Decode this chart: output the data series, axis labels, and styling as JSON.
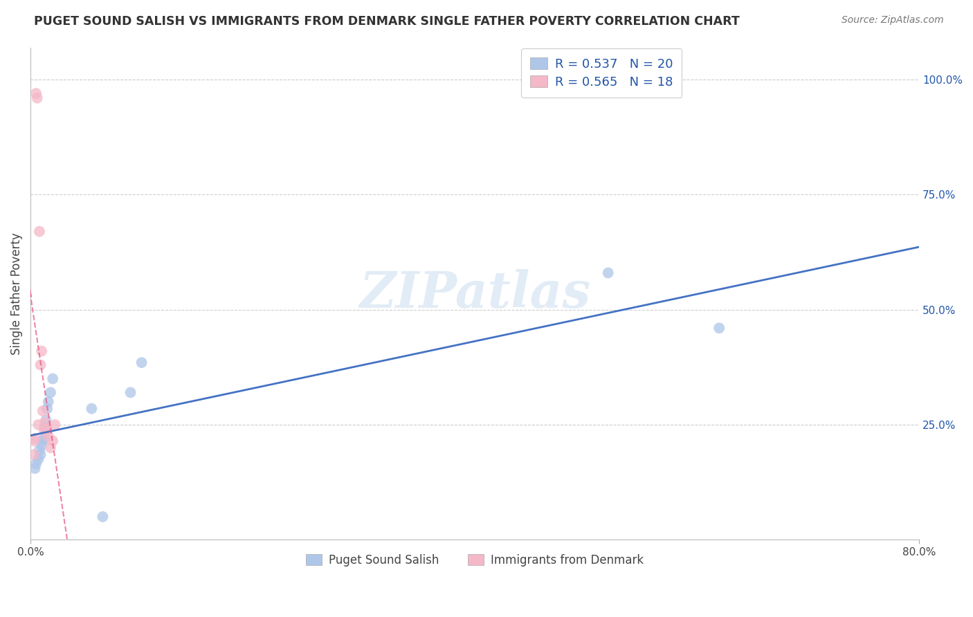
{
  "title": "PUGET SOUND SALISH VS IMMIGRANTS FROM DENMARK SINGLE FATHER POVERTY CORRELATION CHART",
  "source": "Source: ZipAtlas.com",
  "ylabel": "Single Father Poverty",
  "y_ticks": [
    "25.0%",
    "50.0%",
    "75.0%",
    "100.0%"
  ],
  "y_tick_vals": [
    0.25,
    0.5,
    0.75,
    1.0
  ],
  "x_range": [
    0.0,
    0.8
  ],
  "y_range": [
    0.0,
    1.07
  ],
  "watermark": "ZIPatlas",
  "blue_series_label": "Puget Sound Salish",
  "pink_series_label": "Immigrants from Denmark",
  "blue_R": "0.537",
  "blue_N": "20",
  "pink_R": "0.565",
  "pink_N": "18",
  "blue_x": [
    0.004,
    0.005,
    0.007,
    0.008,
    0.009,
    0.01,
    0.011,
    0.012,
    0.013,
    0.014,
    0.015,
    0.016,
    0.018,
    0.02,
    0.055,
    0.09,
    0.1,
    0.065,
    0.52,
    0.62
  ],
  "blue_y": [
    0.155,
    0.165,
    0.175,
    0.195,
    0.185,
    0.205,
    0.215,
    0.22,
    0.245,
    0.26,
    0.285,
    0.3,
    0.32,
    0.35,
    0.285,
    0.32,
    0.385,
    0.05,
    0.58,
    0.46
  ],
  "pink_x": [
    0.003,
    0.004,
    0.005,
    0.006,
    0.007,
    0.008,
    0.009,
    0.01,
    0.011,
    0.012,
    0.013,
    0.014,
    0.015,
    0.016,
    0.018,
    0.02,
    0.022,
    0.003
  ],
  "pink_y": [
    0.215,
    0.22,
    0.97,
    0.96,
    0.25,
    0.67,
    0.38,
    0.41,
    0.28,
    0.24,
    0.255,
    0.235,
    0.24,
    0.225,
    0.2,
    0.215,
    0.25,
    0.185
  ],
  "blue_color": "#aec6e8",
  "pink_color": "#f4b8c8",
  "blue_line_color": "#4472c4",
  "pink_line_color": "#e8507a",
  "grid_color": "#cccccc",
  "background_color": "#ffffff",
  "legend_text_color": "#2255aa"
}
